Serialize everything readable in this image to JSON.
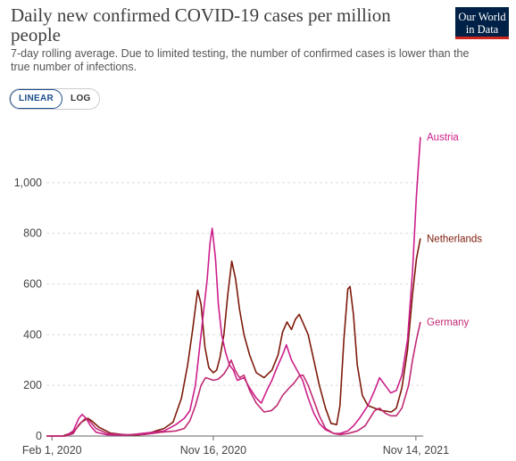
{
  "header": {
    "title": "Daily new confirmed COVID-19 cases per million people",
    "subtitle": "7-day rolling average. Due to limited testing, the number of confirmed cases is lower than the true number of infections.",
    "logo_line1": "Our World",
    "logo_line2": "in Data"
  },
  "controls": {
    "linear_label": "LINEAR",
    "log_label": "LOG",
    "selected": "LINEAR"
  },
  "colors": {
    "Austria": "#cc1e8a",
    "Netherlands": "#7d1a0a",
    "Germany": "#c12a74",
    "grid": "#dddddd",
    "axis": "#666666"
  },
  "chart_data": {
    "type": "line",
    "ylim": [
      0,
      1200
    ],
    "yticks": [
      0,
      200,
      400,
      600,
      800,
      1000
    ],
    "ytick_labels": [
      "0",
      "200",
      "400",
      "600",
      "800",
      "1,000"
    ],
    "xlim": [
      "2020-01-22",
      "2021-11-27"
    ],
    "xticks": [
      "2020-02-01",
      "2020-11-16",
      "2021-11-14"
    ],
    "xtick_labels": [
      "Feb 1, 2020",
      "Nov 16, 2020",
      "Nov 14, 2021"
    ],
    "grid": "horizontal",
    "legend": "line-end labels",
    "series": [
      {
        "name": "Netherlands",
        "points": [
          [
            "2020-01-22",
            0
          ],
          [
            "2020-02-20",
            0
          ],
          [
            "2020-03-10",
            15
          ],
          [
            "2020-03-25",
            55
          ],
          [
            "2020-04-05",
            70
          ],
          [
            "2020-04-12",
            60
          ],
          [
            "2020-04-25",
            35
          ],
          [
            "2020-05-15",
            12
          ],
          [
            "2020-06-10",
            5
          ],
          [
            "2020-07-01",
            4
          ],
          [
            "2020-07-20",
            8
          ],
          [
            "2020-08-05",
            20
          ],
          [
            "2020-08-20",
            30
          ],
          [
            "2020-09-05",
            55
          ],
          [
            "2020-09-20",
            150
          ],
          [
            "2020-10-01",
            280
          ],
          [
            "2020-10-10",
            420
          ],
          [
            "2020-10-19",
            575
          ],
          [
            "2020-10-25",
            520
          ],
          [
            "2020-11-01",
            350
          ],
          [
            "2020-11-08",
            270
          ],
          [
            "2020-11-16",
            250
          ],
          [
            "2020-11-22",
            260
          ],
          [
            "2020-11-28",
            310
          ],
          [
            "2020-12-05",
            400
          ],
          [
            "2020-12-12",
            560
          ],
          [
            "2020-12-19",
            690
          ],
          [
            "2020-12-26",
            620
          ],
          [
            "2021-01-02",
            500
          ],
          [
            "2021-01-10",
            400
          ],
          [
            "2021-01-20",
            320
          ],
          [
            "2021-02-01",
            250
          ],
          [
            "2021-02-15",
            230
          ],
          [
            "2021-03-01",
            260
          ],
          [
            "2021-03-12",
            320
          ],
          [
            "2021-03-20",
            410
          ],
          [
            "2021-03-28",
            450
          ],
          [
            "2021-04-05",
            420
          ],
          [
            "2021-04-12",
            460
          ],
          [
            "2021-04-19",
            480
          ],
          [
            "2021-04-25",
            450
          ],
          [
            "2021-05-01",
            420
          ],
          [
            "2021-05-05",
            400
          ],
          [
            "2021-05-15",
            300
          ],
          [
            "2021-05-25",
            200
          ],
          [
            "2021-06-05",
            110
          ],
          [
            "2021-06-15",
            50
          ],
          [
            "2021-06-25",
            45
          ],
          [
            "2021-07-01",
            120
          ],
          [
            "2021-07-08",
            380
          ],
          [
            "2021-07-15",
            580
          ],
          [
            "2021-07-19",
            590
          ],
          [
            "2021-07-25",
            480
          ],
          [
            "2021-08-01",
            280
          ],
          [
            "2021-08-10",
            160
          ],
          [
            "2021-08-20",
            120
          ],
          [
            "2021-09-01",
            110
          ],
          [
            "2021-09-15",
            100
          ],
          [
            "2021-10-01",
            95
          ],
          [
            "2021-10-10",
            110
          ],
          [
            "2021-10-20",
            190
          ],
          [
            "2021-10-30",
            340
          ],
          [
            "2021-11-08",
            560
          ],
          [
            "2021-11-15",
            700
          ],
          [
            "2021-11-22",
            780
          ]
        ]
      },
      {
        "name": "Austria",
        "points": [
          [
            "2020-01-22",
            0
          ],
          [
            "2020-02-25",
            0
          ],
          [
            "2020-03-10",
            20
          ],
          [
            "2020-03-20",
            70
          ],
          [
            "2020-03-26",
            85
          ],
          [
            "2020-04-02",
            70
          ],
          [
            "2020-04-10",
            40
          ],
          [
            "2020-04-20",
            15
          ],
          [
            "2020-05-10",
            5
          ],
          [
            "2020-06-15",
            4
          ],
          [
            "2020-07-10",
            10
          ],
          [
            "2020-08-01",
            15
          ],
          [
            "2020-08-20",
            20
          ],
          [
            "2020-09-10",
            45
          ],
          [
            "2020-09-25",
            70
          ],
          [
            "2020-10-05",
            100
          ],
          [
            "2020-10-15",
            200
          ],
          [
            "2020-10-25",
            400
          ],
          [
            "2020-11-05",
            620
          ],
          [
            "2020-11-10",
            760
          ],
          [
            "2020-11-14",
            820
          ],
          [
            "2020-11-20",
            700
          ],
          [
            "2020-11-25",
            520
          ],
          [
            "2020-12-01",
            400
          ],
          [
            "2020-12-08",
            330
          ],
          [
            "2020-12-15",
            280
          ],
          [
            "2020-12-22",
            260
          ],
          [
            "2020-12-29",
            220
          ],
          [
            "2021-01-10",
            230
          ],
          [
            "2021-01-20",
            190
          ],
          [
            "2021-02-01",
            150
          ],
          [
            "2021-02-10",
            130
          ],
          [
            "2021-02-20",
            180
          ],
          [
            "2021-03-01",
            220
          ],
          [
            "2021-03-10",
            270
          ],
          [
            "2021-03-20",
            320
          ],
          [
            "2021-03-27",
            360
          ],
          [
            "2021-04-05",
            300
          ],
          [
            "2021-04-15",
            260
          ],
          [
            "2021-04-25",
            220
          ],
          [
            "2021-05-05",
            150
          ],
          [
            "2021-05-15",
            90
          ],
          [
            "2021-05-25",
            50
          ],
          [
            "2021-06-05",
            25
          ],
          [
            "2021-06-20",
            10
          ],
          [
            "2021-07-01",
            10
          ],
          [
            "2021-07-15",
            20
          ],
          [
            "2021-07-25",
            40
          ],
          [
            "2021-08-05",
            70
          ],
          [
            "2021-08-20",
            120
          ],
          [
            "2021-09-01",
            180
          ],
          [
            "2021-09-10",
            230
          ],
          [
            "2021-09-20",
            200
          ],
          [
            "2021-09-30",
            170
          ],
          [
            "2021-10-10",
            180
          ],
          [
            "2021-10-20",
            240
          ],
          [
            "2021-10-30",
            380
          ],
          [
            "2021-11-08",
            650
          ],
          [
            "2021-11-15",
            950
          ],
          [
            "2021-11-22",
            1180
          ]
        ]
      },
      {
        "name": "Germany",
        "points": [
          [
            "2020-01-22",
            0
          ],
          [
            "2020-02-25",
            0
          ],
          [
            "2020-03-10",
            10
          ],
          [
            "2020-03-20",
            45
          ],
          [
            "2020-04-01",
            70
          ],
          [
            "2020-04-08",
            60
          ],
          [
            "2020-04-20",
            30
          ],
          [
            "2020-05-10",
            10
          ],
          [
            "2020-06-15",
            5
          ],
          [
            "2020-07-15",
            6
          ],
          [
            "2020-08-15",
            15
          ],
          [
            "2020-09-10",
            20
          ],
          [
            "2020-09-25",
            30
          ],
          [
            "2020-10-05",
            60
          ],
          [
            "2020-10-15",
            120
          ],
          [
            "2020-10-25",
            200
          ],
          [
            "2020-11-02",
            230
          ],
          [
            "2020-11-10",
            225
          ],
          [
            "2020-11-16",
            220
          ],
          [
            "2020-11-25",
            225
          ],
          [
            "2020-12-05",
            245
          ],
          [
            "2020-12-12",
            270
          ],
          [
            "2020-12-18",
            300
          ],
          [
            "2020-12-25",
            260
          ],
          [
            "2021-01-02",
            230
          ],
          [
            "2021-01-10",
            240
          ],
          [
            "2021-01-20",
            180
          ],
          [
            "2021-02-01",
            130
          ],
          [
            "2021-02-15",
            95
          ],
          [
            "2021-02-28",
            100
          ],
          [
            "2021-03-10",
            120
          ],
          [
            "2021-03-20",
            160
          ],
          [
            "2021-04-01",
            190
          ],
          [
            "2021-04-10",
            210
          ],
          [
            "2021-04-20",
            240
          ],
          [
            "2021-04-26",
            240
          ],
          [
            "2021-05-05",
            200
          ],
          [
            "2021-05-15",
            140
          ],
          [
            "2021-05-25",
            80
          ],
          [
            "2021-06-05",
            30
          ],
          [
            "2021-06-20",
            10
          ],
          [
            "2021-07-01",
            6
          ],
          [
            "2021-07-15",
            10
          ],
          [
            "2021-08-01",
            20
          ],
          [
            "2021-08-15",
            40
          ],
          [
            "2021-09-01",
            100
          ],
          [
            "2021-09-10",
            110
          ],
          [
            "2021-09-20",
            90
          ],
          [
            "2021-09-30",
            80
          ],
          [
            "2021-10-10",
            80
          ],
          [
            "2021-10-20",
            110
          ],
          [
            "2021-11-01",
            200
          ],
          [
            "2021-11-08",
            300
          ],
          [
            "2021-11-15",
            380
          ],
          [
            "2021-11-22",
            450
          ]
        ]
      }
    ]
  }
}
